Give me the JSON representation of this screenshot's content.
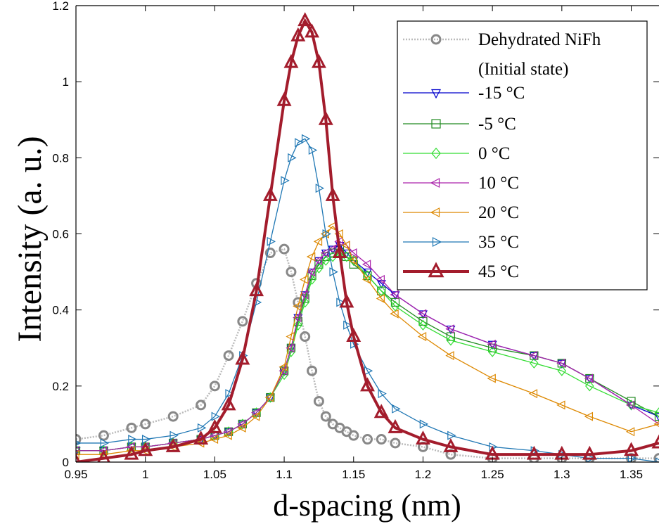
{
  "chart_data": {
    "type": "line",
    "xlabel": "d-spacing (nm)",
    "ylabel": "Intensity (a. u.)",
    "xlim": [
      0.95,
      1.37
    ],
    "ylim": [
      0,
      1.2
    ],
    "xticks": [
      0.95,
      1,
      1.05,
      1.1,
      1.15,
      1.2,
      1.25,
      1.3,
      1.35
    ],
    "xtick_labels": [
      "0.95",
      "1",
      "1.05",
      "1.1",
      "1.15",
      "1.2",
      "1.25",
      "1.3",
      "1.35"
    ],
    "yticks": [
      0,
      0.2,
      0.4,
      0.6,
      0.8,
      1,
      1.2
    ],
    "ytick_labels": [
      "0",
      "0.2",
      "0.4",
      "0.6",
      "0.8",
      "1",
      "1.2"
    ],
    "grid": false,
    "legend_position": "top-right",
    "legend_extra_line": "(Initial state)",
    "x": [
      0.95,
      0.97,
      0.99,
      1.0,
      1.02,
      1.04,
      1.05,
      1.06,
      1.07,
      1.08,
      1.09,
      1.1,
      1.105,
      1.11,
      1.115,
      1.12,
      1.125,
      1.13,
      1.135,
      1.14,
      1.145,
      1.15,
      1.16,
      1.17,
      1.18,
      1.2,
      1.22,
      1.25,
      1.28,
      1.3,
      1.32,
      1.35,
      1.37
    ],
    "series": [
      {
        "name": "Dehydrated NiFh",
        "color": "#888888",
        "marker": "circle",
        "values": [
          0.06,
          0.07,
          0.09,
          0.1,
          0.12,
          0.15,
          0.2,
          0.28,
          0.37,
          0.47,
          0.55,
          0.56,
          0.5,
          0.42,
          0.33,
          0.24,
          0.16,
          0.12,
          0.1,
          0.09,
          0.08,
          0.07,
          0.06,
          0.06,
          0.05,
          0.04,
          0.02,
          0.01,
          0.01,
          0.01,
          0.01,
          0.01,
          0.01
        ]
      },
      {
        "name": "-15 °C",
        "color": "#0000cc",
        "marker": "triangle-down",
        "values": [
          0.03,
          0.03,
          0.04,
          0.04,
          0.05,
          0.06,
          0.07,
          0.08,
          0.1,
          0.13,
          0.17,
          0.24,
          0.3,
          0.38,
          0.44,
          0.5,
          0.53,
          0.55,
          0.56,
          0.57,
          0.55,
          0.53,
          0.5,
          0.47,
          0.44,
          0.39,
          0.35,
          0.31,
          0.28,
          0.26,
          0.22,
          0.15,
          0.12
        ]
      },
      {
        "name": "-5 °C",
        "color": "#228b22",
        "marker": "square",
        "values": [
          0.03,
          0.03,
          0.04,
          0.04,
          0.05,
          0.06,
          0.07,
          0.08,
          0.1,
          0.13,
          0.17,
          0.24,
          0.3,
          0.37,
          0.43,
          0.49,
          0.52,
          0.54,
          0.55,
          0.56,
          0.54,
          0.52,
          0.49,
          0.45,
          0.42,
          0.37,
          0.33,
          0.3,
          0.28,
          0.26,
          0.22,
          0.16,
          0.12
        ]
      },
      {
        "name": "0 °C",
        "color": "#33dd33",
        "marker": "diamond",
        "values": [
          0.03,
          0.03,
          0.04,
          0.04,
          0.05,
          0.06,
          0.07,
          0.08,
          0.1,
          0.13,
          0.17,
          0.23,
          0.29,
          0.36,
          0.42,
          0.48,
          0.51,
          0.53,
          0.54,
          0.55,
          0.54,
          0.53,
          0.49,
          0.45,
          0.41,
          0.36,
          0.32,
          0.29,
          0.26,
          0.24,
          0.2,
          0.15,
          0.13
        ]
      },
      {
        "name": "10 °C",
        "color": "#aa22aa",
        "marker": "triangle-left",
        "values": [
          0.03,
          0.03,
          0.04,
          0.04,
          0.05,
          0.06,
          0.07,
          0.08,
          0.1,
          0.13,
          0.17,
          0.24,
          0.3,
          0.38,
          0.44,
          0.5,
          0.53,
          0.55,
          0.56,
          0.58,
          0.57,
          0.55,
          0.52,
          0.48,
          0.44,
          0.39,
          0.35,
          0.31,
          0.28,
          0.26,
          0.22,
          0.15,
          0.1
        ]
      },
      {
        "name": "20 °C",
        "color": "#dd8800",
        "marker": "triangle-left",
        "values": [
          0.02,
          0.02,
          0.03,
          0.03,
          0.04,
          0.05,
          0.06,
          0.07,
          0.09,
          0.12,
          0.17,
          0.25,
          0.33,
          0.41,
          0.48,
          0.54,
          0.58,
          0.6,
          0.62,
          0.6,
          0.57,
          0.53,
          0.48,
          0.43,
          0.39,
          0.33,
          0.28,
          0.22,
          0.18,
          0.15,
          0.12,
          0.08,
          0.1
        ]
      },
      {
        "name": "35 °C",
        "color": "#1f77b4",
        "marker": "triangle-right",
        "values": [
          0.05,
          0.05,
          0.06,
          0.06,
          0.07,
          0.09,
          0.12,
          0.18,
          0.28,
          0.42,
          0.58,
          0.74,
          0.8,
          0.84,
          0.85,
          0.82,
          0.72,
          0.6,
          0.5,
          0.42,
          0.36,
          0.31,
          0.24,
          0.18,
          0.14,
          0.1,
          0.07,
          0.04,
          0.03,
          0.02,
          0.01,
          0.01,
          0.0
        ]
      },
      {
        "name": "45 °C",
        "color": "#a31c2c",
        "marker": "triangle-up",
        "values": [
          0.0,
          0.01,
          0.02,
          0.03,
          0.04,
          0.06,
          0.09,
          0.15,
          0.27,
          0.45,
          0.7,
          0.95,
          1.05,
          1.12,
          1.16,
          1.13,
          1.05,
          0.9,
          0.7,
          0.55,
          0.42,
          0.33,
          0.2,
          0.13,
          0.09,
          0.06,
          0.04,
          0.02,
          0.02,
          0.02,
          0.02,
          0.03,
          0.05
        ]
      }
    ]
  }
}
